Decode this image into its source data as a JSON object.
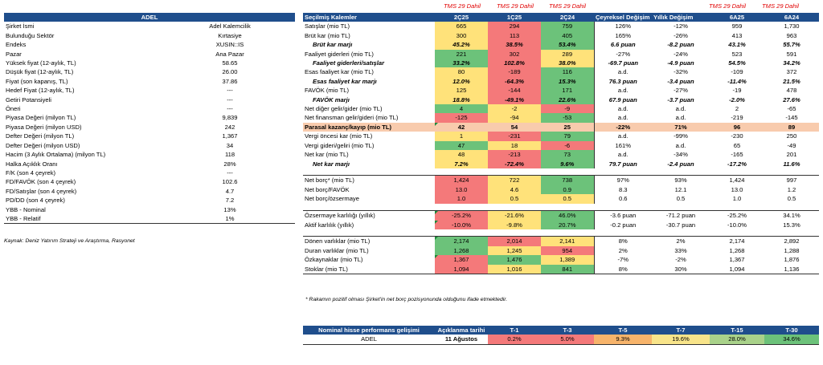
{
  "left": {
    "title": "ADEL",
    "rows": [
      {
        "label": "Şirket İsmi",
        "value": "Adel Kalemcilik"
      },
      {
        "label": "Bulunduğu Sektör",
        "value": "Kırtasiye"
      },
      {
        "label": "Endeks",
        "value": "XUSIN::IS"
      },
      {
        "label": "Pazar",
        "value": "Ana Pazar"
      },
      {
        "label": "Yüksek fiyat (12-aylık, TL)",
        "value": "58.65"
      },
      {
        "label": "Düşük fiyat (12-aylık, TL)",
        "value": "26.00"
      },
      {
        "label": "Fiyat (son kapanış, TL)",
        "value": "37.86"
      },
      {
        "label": "Hedef Fiyat (12-aylık, TL)",
        "value": "---"
      },
      {
        "label": "Getiri Potansiyeli",
        "value": "---"
      },
      {
        "label": "Öneri",
        "value": "---"
      },
      {
        "label": "Piyasa Değeri (milyon TL)",
        "value": "9,839"
      },
      {
        "label": "Piyasa Değeri (milyon USD)",
        "value": "242"
      },
      {
        "label": "Defter Değeri (milyon TL)",
        "value": "1,367"
      },
      {
        "label": "Defter Değeri (milyon USD)",
        "value": "34"
      },
      {
        "label": "Hacim (3 Aylık Ortalama) (milyon TL)",
        "value": "118"
      },
      {
        "label": "Halka Açıklık Oranı",
        "value": "28%"
      },
      {
        "label": "F/K (son 4 çeyrek)",
        "value": "---"
      },
      {
        "label": "FD/FAVÖK (son 4 çeyrek)",
        "value": "102.6"
      },
      {
        "label": "FD/Satışlar (son 4 çeyrek)",
        "value": "4.7"
      },
      {
        "label": "PD/DD (son 4 çeyrek)",
        "value": "7.2"
      },
      {
        "label": "YBB - Nominal",
        "value": "13%"
      },
      {
        "label": "YBB - Relatif",
        "value": "1%"
      }
    ],
    "source": "Kaynak: Deniz Yatırım Strateji ve Araştırma, Rasyonet"
  },
  "tms_label": "TMS 29 Dahil",
  "main": {
    "headers": [
      "Seçilmiş Kalemler",
      "2Ç25",
      "1Ç25",
      "2Ç24",
      "Çeyreksel Değişim",
      "Yıllık Değişim",
      "6A25",
      "6A24"
    ],
    "rows": [
      {
        "label": "Satışlar (mio TL)",
        "q1": "665",
        "q2": "294",
        "q3": "759",
        "qoq": "126%",
        "yoy": "-12%",
        "h1": "959",
        "h2": "1,730"
      },
      {
        "label": "Brüt kar (mio TL)",
        "q1": "300",
        "q2": "113",
        "q3": "405",
        "qoq": "165%",
        "yoy": "-26%",
        "h1": "413",
        "h2": "963"
      },
      {
        "label": "Brüt kar marjı",
        "q1": "45.2%",
        "q2": "38.5%",
        "q3": "53.4%",
        "qoq": "6.6 puan",
        "yoy": "-8.2 puan",
        "h1": "43.1%",
        "h2": "55.7%"
      },
      {
        "label": "Faaliyet giderleri (mio TL)",
        "q1": "221",
        "q2": "302",
        "q3": "289",
        "qoq": "-27%",
        "yoy": "-24%",
        "h1": "523",
        "h2": "591"
      },
      {
        "label": "Faaliyet giderleri/satışlar",
        "q1": "33.2%",
        "q2": "102.8%",
        "q3": "38.0%",
        "qoq": "-69.7 puan",
        "yoy": "-4.9 puan",
        "h1": "54.5%",
        "h2": "34.2%"
      },
      {
        "label": "Esas faaliyet kar (mio TL)",
        "q1": "80",
        "q2": "-189",
        "q3": "116",
        "qoq": "a.d.",
        "yoy": "-32%",
        "h1": "-109",
        "h2": "372"
      },
      {
        "label": "Esas faaliyet kar marjı",
        "q1": "12.0%",
        "q2": "-64.3%",
        "q3": "15.3%",
        "qoq": "76.3 puan",
        "yoy": "-3.4 puan",
        "h1": "-11.4%",
        "h2": "21.5%"
      },
      {
        "label": "FAVÖK (mio TL)",
        "q1": "125",
        "q2": "-144",
        "q3": "171",
        "qoq": "a.d.",
        "yoy": "-27%",
        "h1": "-19",
        "h2": "478"
      },
      {
        "label": "FAVÖK marjı",
        "q1": "18.8%",
        "q2": "-49.1%",
        "q3": "22.6%",
        "qoq": "67.9 puan",
        "yoy": "-3.7 puan",
        "h1": "-2.0%",
        "h2": "27.6%"
      },
      {
        "label": "Net diğer gelir/gider (mio TL)",
        "q1": "4",
        "q2": "-2",
        "q3": "-9",
        "qoq": "a.d.",
        "yoy": "a.d.",
        "h1": "2",
        "h2": "-65"
      },
      {
        "label": "Net finansman gelir/gideri (mio TL)",
        "q1": "-125",
        "q2": "-94",
        "q3": "-53",
        "qoq": "a.d.",
        "yoy": "a.d.",
        "h1": "-219",
        "h2": "-145"
      },
      {
        "label": "Parasal kazanç/kayıp (mio TL)",
        "q1": "42",
        "q2": "54",
        "q3": "25",
        "qoq": "-22%",
        "yoy": "71%",
        "h1": "96",
        "h2": "89"
      },
      {
        "label": "Vergi öncesi kar (mio TL)",
        "q1": "1",
        "q2": "-231",
        "q3": "79",
        "qoq": "a.d.",
        "yoy": "-99%",
        "h1": "-230",
        "h2": "250"
      },
      {
        "label": "Vergi gideri/geliri (mio TL)",
        "q1": "47",
        "q2": "18",
        "q3": "-6",
        "qoq": "161%",
        "yoy": "a.d.",
        "h1": "65",
        "h2": "-49"
      },
      {
        "label": "Net kar (mio TL)",
        "q1": "48",
        "q2": "-213",
        "q3": "73",
        "qoq": "a.d.",
        "yoy": "-34%",
        "h1": "-165",
        "h2": "201"
      },
      {
        "label": "Net kar marjı",
        "q1": "7.2%",
        "q2": "-72.4%",
        "q3": "9.6%",
        "qoq": "79.7 puan",
        "yoy": "-2.4 puan",
        "h1": "-17.2%",
        "h2": "11.6%"
      },
      {
        "label": "Net borç* (mio TL)",
        "q1": "1,424",
        "q2": "722",
        "q3": "738",
        "qoq": "97%",
        "yoy": "93%",
        "h1": "1,424",
        "h2": "997"
      },
      {
        "label": "Net borç/FAVÖK",
        "q1": "13.0",
        "q2": "4.6",
        "q3": "0.9",
        "qoq": "8.3",
        "yoy": "12.1",
        "h1": "13.0",
        "h2": "1.2"
      },
      {
        "label": "Net borç/özsermaye",
        "q1": "1.0",
        "q2": "0.5",
        "q3": "0.5",
        "qoq": "0.6",
        "yoy": "0.5",
        "h1": "1.0",
        "h2": "0.5"
      },
      {
        "label": "Özsermaye karlılığı (yıllık)",
        "q1": "-25.2%",
        "q2": "-21.6%",
        "q3": "46.0%",
        "qoq": "-3.6 puan",
        "yoy": "-71.2 puan",
        "h1": "-25.2%",
        "h2": "34.1%"
      },
      {
        "label": "Aktif karlılık (yıllık)",
        "q1": "-10.0%",
        "q2": "-9.8%",
        "q3": "20.7%",
        "qoq": "-0.2 puan",
        "yoy": "-30.7 puan",
        "h1": "-10.0%",
        "h2": "15.3%"
      },
      {
        "label": "Dönen varlıklar (mio TL)",
        "q1": "2,174",
        "q2": "2,014",
        "q3": "2,141",
        "qoq": "8%",
        "yoy": "2%",
        "h1": "2,174",
        "h2": "2,892"
      },
      {
        "label": "Duran varlıklar (mio TL)",
        "q1": "1,268",
        "q2": "1,245",
        "q3": "954",
        "qoq": "2%",
        "yoy": "33%",
        "h1": "1,268",
        "h2": "1,288"
      },
      {
        "label": "Özkaynaklar (mio TL)",
        "q1": "1,367",
        "q2": "1,476",
        "q3": "1,389",
        "qoq": "-7%",
        "yoy": "-2%",
        "h1": "1,367",
        "h2": "1,876"
      },
      {
        "label": "Stoklar (mio TL)",
        "q1": "1,094",
        "q2": "1,016",
        "q3": "841",
        "qoq": "8%",
        "yoy": "30%",
        "h1": "1,094",
        "h2": "1,136"
      }
    ],
    "note": "* Rakamın pozitif olması Şirket'in net borç pozisyonunda olduğunu ifade etmektedir."
  },
  "perf": {
    "headers": [
      "Nominal hisse performans gelişimi",
      "Açıklanma tarihi",
      "T-1",
      "T-3",
      "T-5",
      "T-7",
      "T-15",
      "T-30"
    ],
    "row": {
      "name": "ADEL",
      "date": "11 Ağustos",
      "t1": "0.2%",
      "t3": "5.0%",
      "t5": "9.3%",
      "t7": "19.6%",
      "t15": "28.0%",
      "t30": "34.6%"
    }
  }
}
